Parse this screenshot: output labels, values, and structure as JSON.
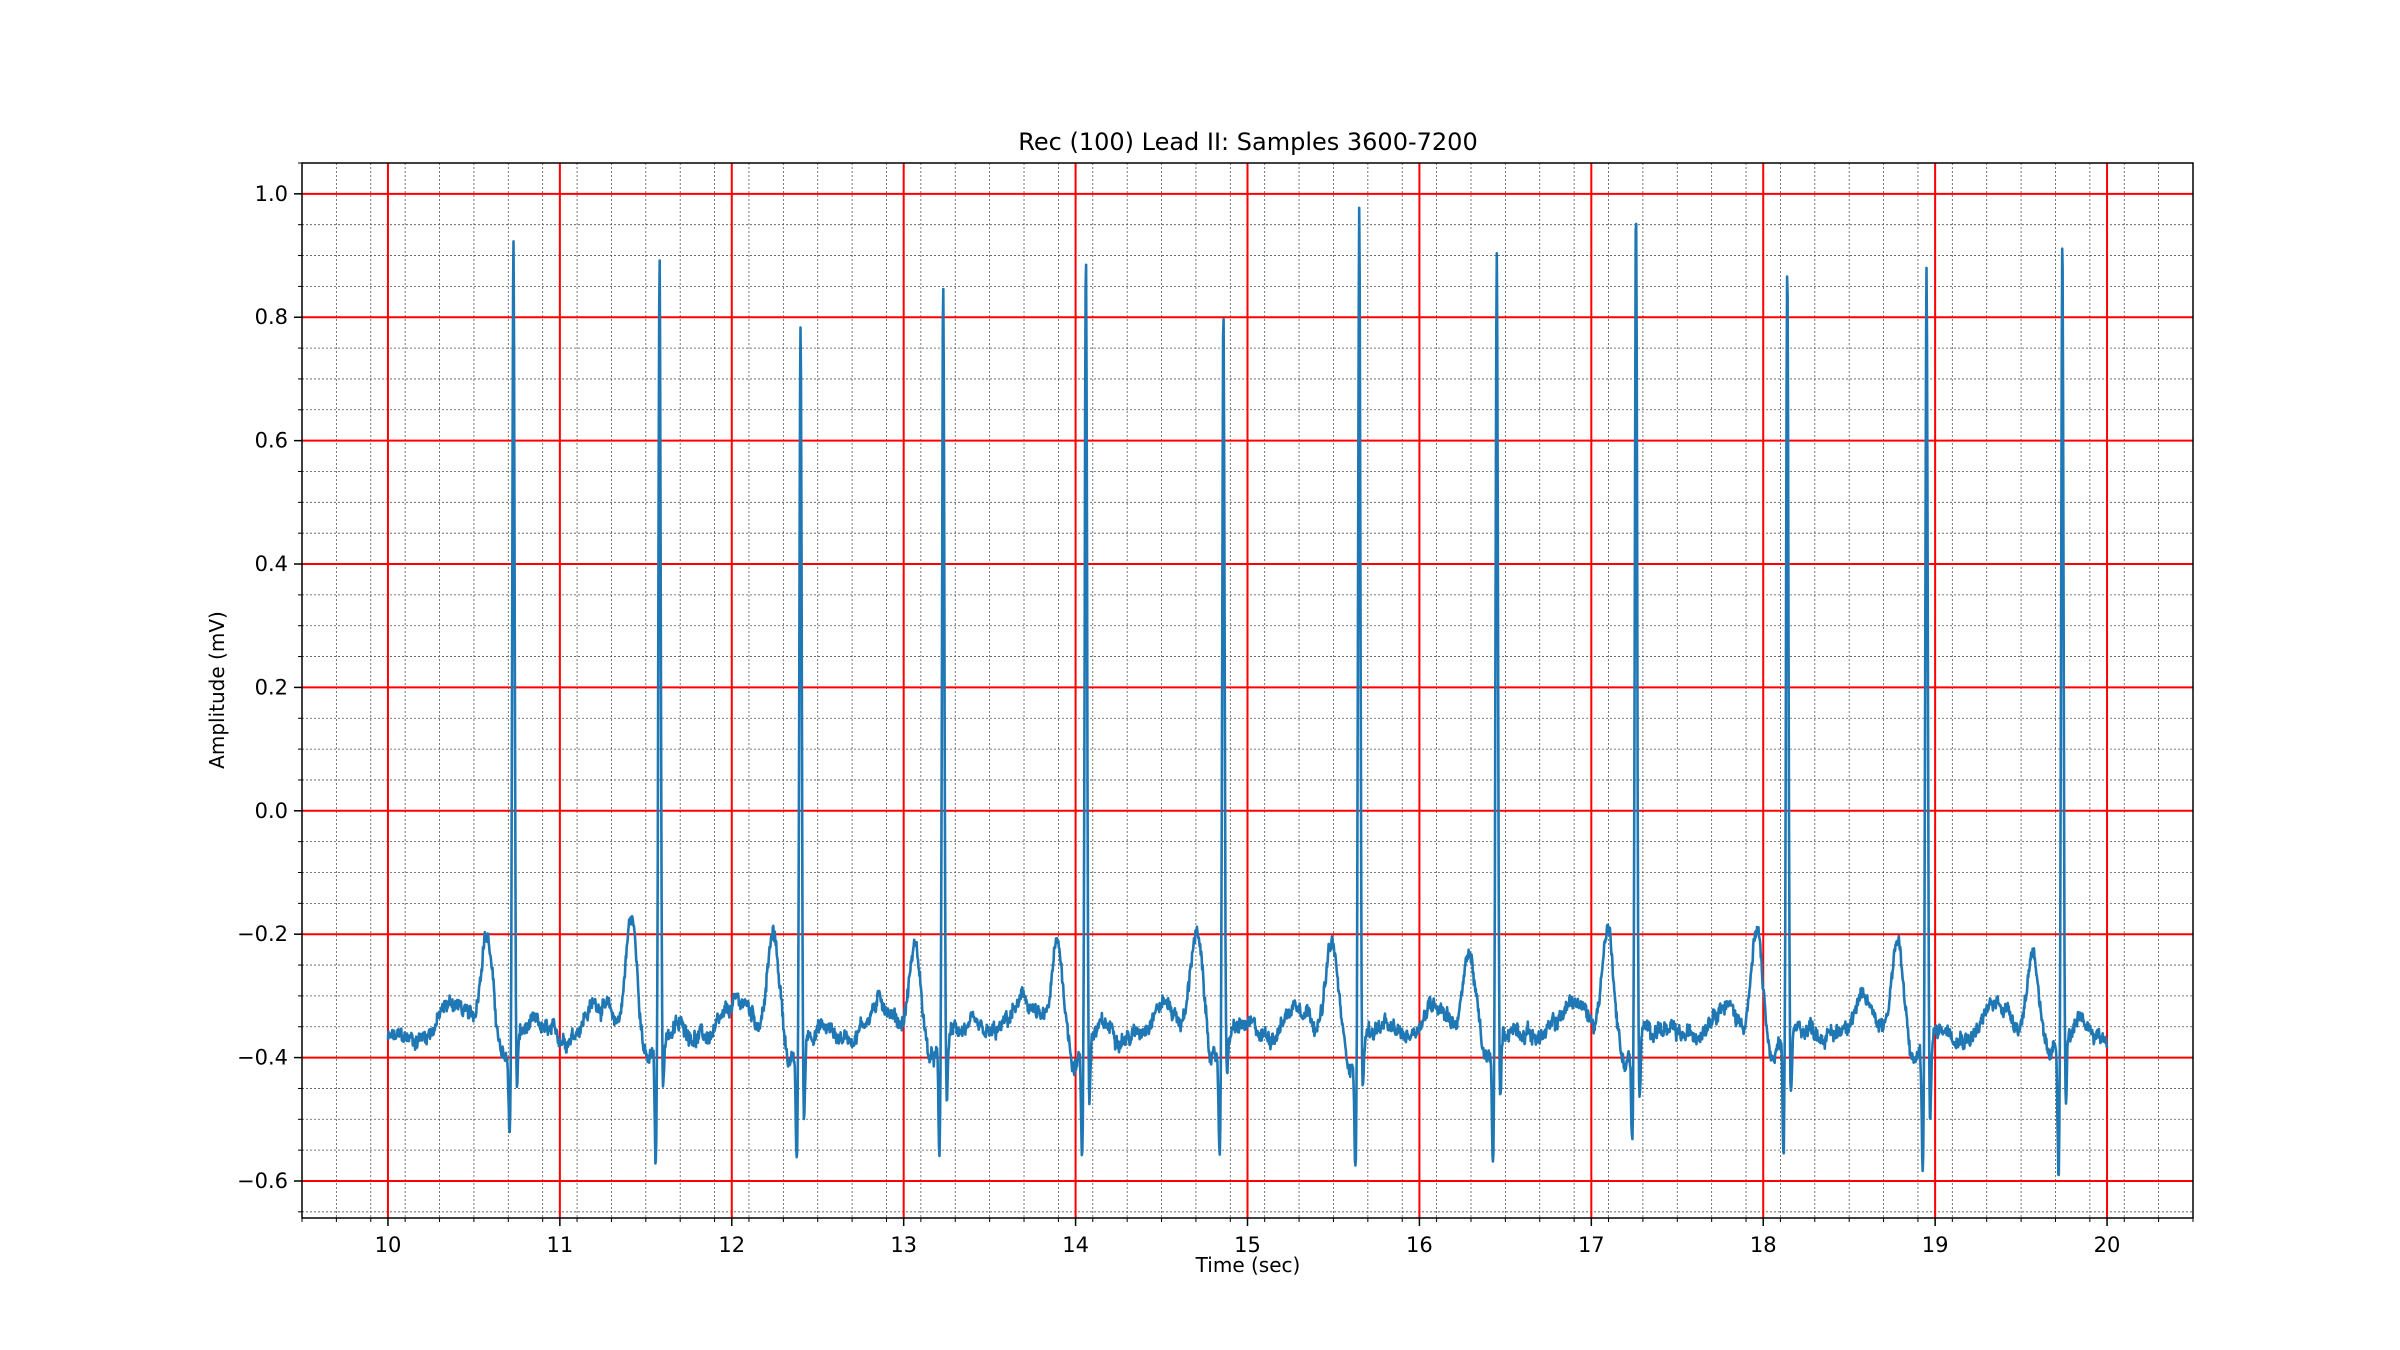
{
  "chart_data": {
    "type": "line",
    "title": "Rec (100) Lead II: Samples 3600-7200",
    "xlabel": "Time (sec)",
    "ylabel": "Amplitude (mV)",
    "xlim": [
      9.5,
      20.5
    ],
    "ylim": [
      -0.66,
      1.05
    ],
    "x_ticks": [
      10,
      11,
      12,
      13,
      14,
      15,
      16,
      17,
      18,
      19,
      20
    ],
    "y_ticks": [
      -0.6,
      -0.4,
      -0.2,
      0.0,
      0.2,
      0.4,
      0.6,
      0.8,
      1.0
    ],
    "x_tick_labels": [
      "10",
      "11",
      "12",
      "13",
      "14",
      "15",
      "16",
      "17",
      "18",
      "19",
      "20"
    ],
    "y_tick_labels": [
      "−0.6",
      "−0.4",
      "−0.2",
      "0.0",
      "0.2",
      "0.4",
      "0.6",
      "0.8",
      "1.0"
    ],
    "x_minor_step": 0.2,
    "y_minor_step": 0.05,
    "major_grid": true,
    "minor_grid": true,
    "major_grid_color": "#ff0000",
    "minor_grid_color": "#555555",
    "line_color": "#1f77b4",
    "x_range": [
      10,
      20
    ],
    "baseline_mV": -0.37,
    "sampling_rate_hz": 360,
    "beats": [
      {
        "r_time": 10.73,
        "r_peak": 0.935,
        "q_min": -0.515,
        "s_min": -0.455
      },
      {
        "r_time": 11.58,
        "r_peak": 0.89,
        "q_min": -0.575,
        "s_min": -0.45
      },
      {
        "r_time": 12.4,
        "r_peak": 0.795,
        "q_min": -0.565,
        "s_min": -0.52
      },
      {
        "r_time": 13.23,
        "r_peak": 0.85,
        "q_min": -0.555,
        "s_min": -0.49
      },
      {
        "r_time": 14.06,
        "r_peak": 0.905,
        "q_min": -0.555,
        "s_min": -0.475
      },
      {
        "r_time": 14.86,
        "r_peak": 0.825,
        "q_min": -0.545,
        "s_min": -0.445
      },
      {
        "r_time": 15.65,
        "r_peak": 0.97,
        "q_min": -0.57,
        "s_min": -0.465
      },
      {
        "r_time": 16.45,
        "r_peak": 0.895,
        "q_min": -0.565,
        "s_min": -0.49
      },
      {
        "r_time": 17.26,
        "r_peak": 0.975,
        "q_min": -0.535,
        "s_min": -0.485
      },
      {
        "r_time": 18.14,
        "r_peak": 0.875,
        "q_min": -0.575,
        "s_min": -0.47
      },
      {
        "r_time": 18.95,
        "r_peak": 0.88,
        "q_min": -0.585,
        "s_min": -0.51
      },
      {
        "r_time": 19.74,
        "r_peak": 0.935,
        "q_min": -0.585,
        "s_min": -0.485
      }
    ],
    "t_waves": [
      {
        "time": 10.58,
        "peak": -0.19
      },
      {
        "time": 11.42,
        "peak": -0.175
      },
      {
        "time": 12.25,
        "peak": -0.2
      },
      {
        "time": 13.07,
        "peak": -0.22
      },
      {
        "time": 13.9,
        "peak": -0.22
      },
      {
        "time": 14.71,
        "peak": -0.19
      },
      {
        "time": 15.5,
        "peak": -0.215
      },
      {
        "time": 16.3,
        "peak": -0.225
      },
      {
        "time": 17.1,
        "peak": -0.19
      },
      {
        "time": 17.96,
        "peak": -0.2
      },
      {
        "time": 18.78,
        "peak": -0.21
      },
      {
        "time": 19.57,
        "peak": -0.225
      }
    ]
  }
}
